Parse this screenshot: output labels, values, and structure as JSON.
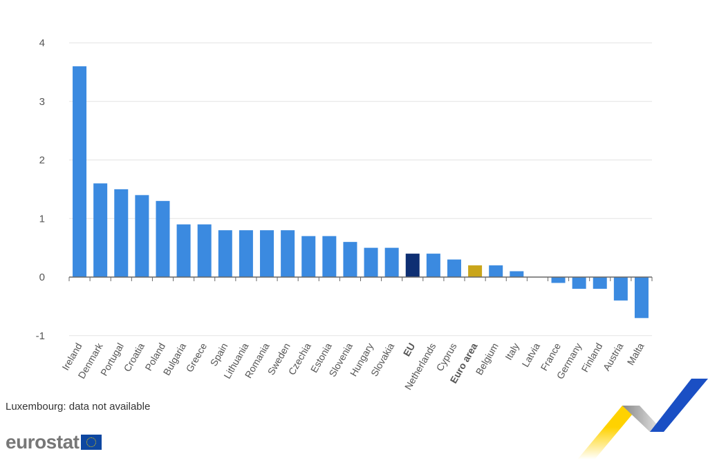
{
  "chart_data": {
    "type": "bar",
    "title": "",
    "xlabel": "",
    "ylabel": "",
    "ylim": [
      -1,
      4
    ],
    "yticks": [
      -1,
      0,
      1,
      2,
      3,
      4
    ],
    "grid": true,
    "categories": [
      "Ireland",
      "Denmark",
      "Portugal",
      "Croatia",
      "Poland",
      "Bulgaria",
      "Greece",
      "Spain",
      "Lithuania",
      "Romania",
      "Sweden",
      "Czechia",
      "Estonia",
      "Slovenia",
      "Hungary",
      "Slovakia",
      "EU",
      "Netherlands",
      "Cyprus",
      "Euro area",
      "Belgium",
      "Italy",
      "Latvia",
      "France",
      "Germany",
      "Finland",
      "Austria",
      "Malta"
    ],
    "values": [
      3.6,
      1.6,
      1.5,
      1.4,
      1.3,
      0.9,
      0.9,
      0.8,
      0.8,
      0.8,
      0.8,
      0.7,
      0.7,
      0.6,
      0.5,
      0.5,
      0.4,
      0.4,
      0.3,
      0.2,
      0.2,
      0.1,
      0.0,
      -0.1,
      -0.2,
      -0.2,
      -0.4,
      -0.7
    ],
    "highlight": {
      "EU": "#0e2f73",
      "Euro area": "#c9a51a"
    },
    "bold_categories": [
      "EU",
      "Euro area"
    ],
    "bar_color": "#3b8ae0"
  },
  "note": "Luxembourg: data not available",
  "logo": {
    "text": "eurostat",
    "flag_color": "#0e47a1"
  }
}
